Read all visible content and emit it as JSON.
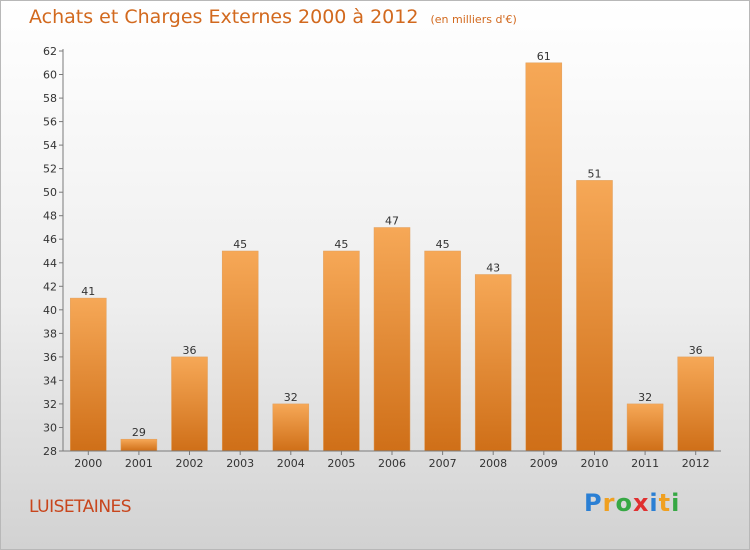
{
  "title": "Achats et Charges Externes 2000 à 2012",
  "subtitle": "(en milliers d'€)",
  "commune": "LUISETAINES",
  "brand": {
    "letters": [
      "P",
      "r",
      "o",
      "x",
      "i",
      "t",
      "i"
    ],
    "colors": [
      "#2a7fd4",
      "#f0a020",
      "#36a844",
      "#e03030",
      "#2a7fd4",
      "#f0a020",
      "#36a844"
    ]
  },
  "chart_data": {
    "type": "bar",
    "title": "Achats et Charges Externes 2000 à 2012",
    "subtitle": "(en milliers d'€)",
    "categories": [
      "2000",
      "2001",
      "2002",
      "2003",
      "2004",
      "2005",
      "2006",
      "2007",
      "2008",
      "2009",
      "2010",
      "2011",
      "2012"
    ],
    "values": [
      41,
      29,
      36,
      45,
      32,
      45,
      47,
      45,
      43,
      61,
      51,
      32,
      36
    ],
    "ylim": [
      28,
      62
    ],
    "yticks": [
      28,
      30,
      32,
      34,
      36,
      38,
      40,
      42,
      44,
      46,
      48,
      50,
      52,
      54,
      56,
      58,
      60,
      62
    ],
    "grid": false,
    "colors": {
      "bar": "#f0922e",
      "axis": "#7a7a7a",
      "label": "#333333"
    }
  }
}
